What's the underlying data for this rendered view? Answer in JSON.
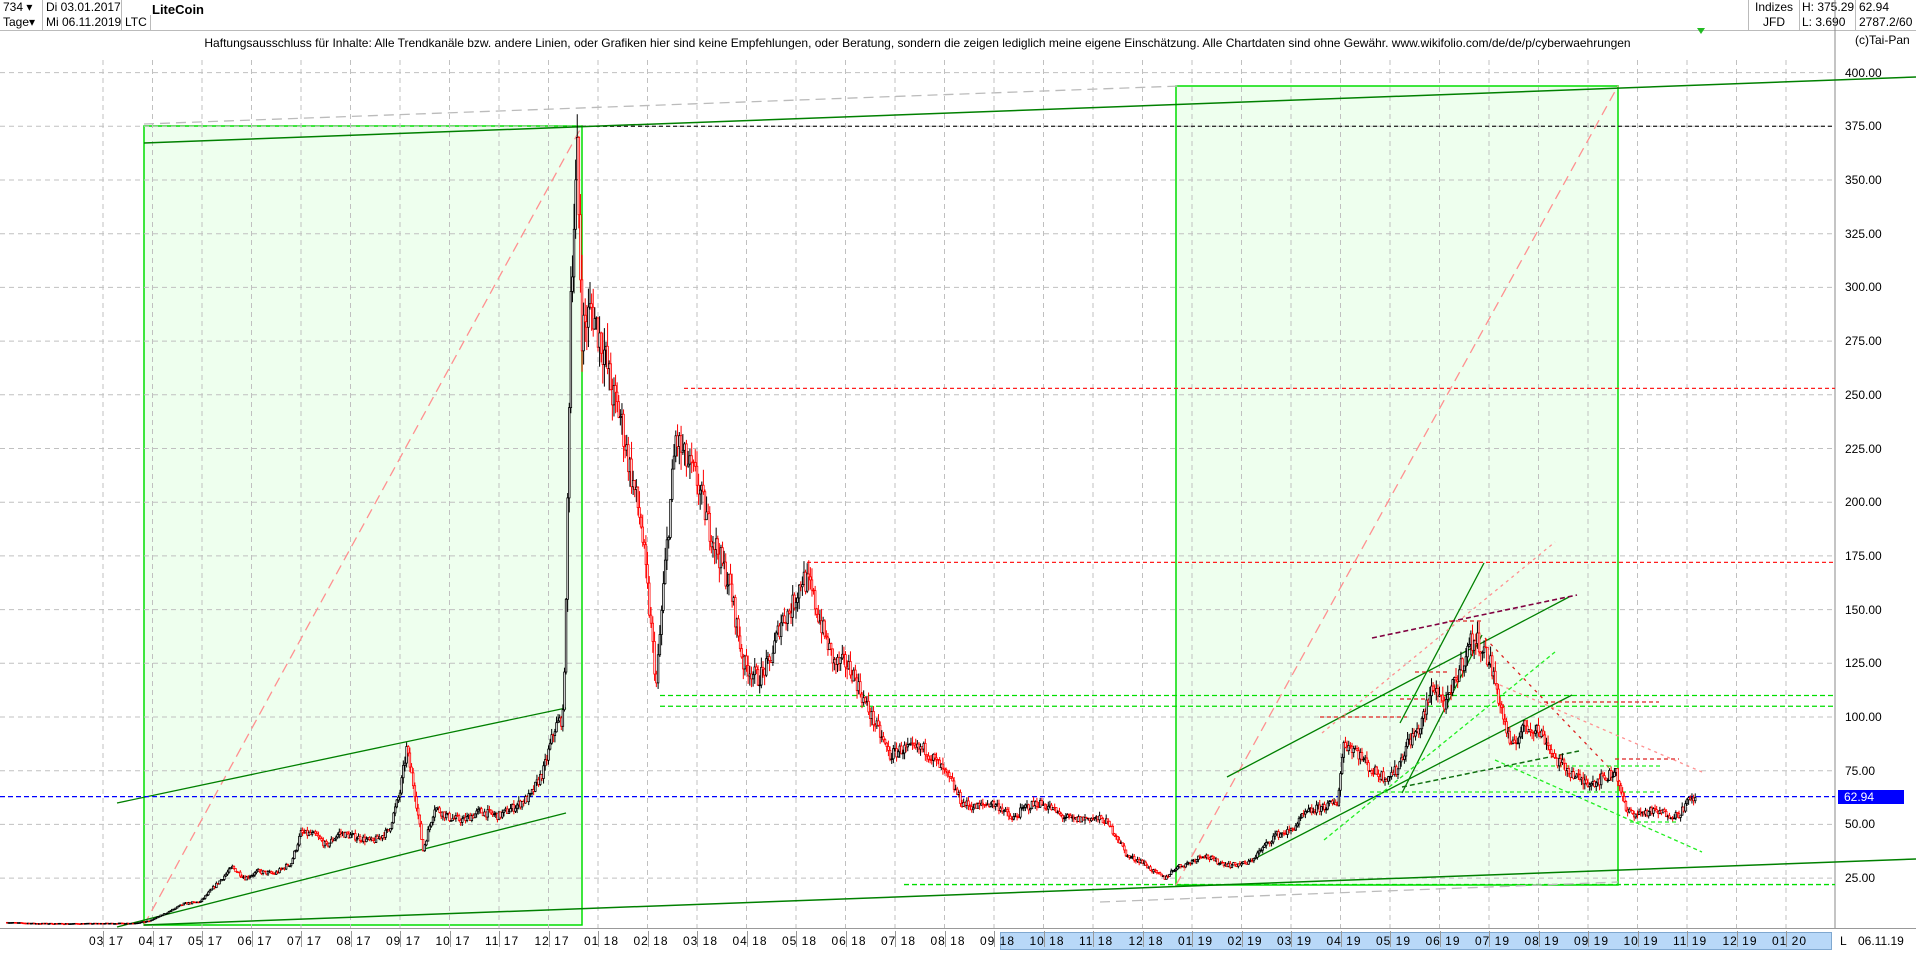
{
  "header": {
    "bar_count": "734",
    "period": "Tage",
    "start_date": "Di 03.01.2017",
    "end_date": "Mi 06.11.2019",
    "symbol": "LTC",
    "title": "LiteCoin",
    "exchange_group": "Indizes",
    "exchange": "JFD",
    "high": "H: 375.29",
    "low": "L: 3.690",
    "last": "62.94",
    "info": "2787.2/60"
  },
  "disclaimer": "Haftungsausschluss für Inhalte: Alle Trendkanäle bzw. andere Linien, oder Grafiken hier sind keine Empfehlungen, oder Beratung, sondern die zeigen lediglich meine eigene Einschätzung. Alle Chartdaten sind ohne Gewähr.  www.wikifolio.com/de/de/p/cyberwaehrungen",
  "copyright": "(c)Tai-Pan",
  "colors": {
    "up": "#000000",
    "down": "#ff0000",
    "box_fill": "#eeffee",
    "box_stroke": "#00dd00",
    "trend": "#008000",
    "last_price": "#0000ff"
  },
  "footer": {
    "scroll_marker": "L",
    "current_date": "06.11.19"
  },
  "chart_data": {
    "type": "candlestick",
    "title": "LiteCoin",
    "last_price": 62.94,
    "ylim": [
      0,
      410
    ],
    "y_ticks": [
      "25.00",
      "50.00",
      "75.00",
      "100.00",
      "125.00",
      "150.00",
      "175.00",
      "200.00",
      "225.00",
      "250.00",
      "275.00",
      "300.00",
      "325.00",
      "350.00",
      "375.00",
      "400.00"
    ],
    "x_ticks": [
      "03 17",
      "04 17",
      "05 17",
      "06 17",
      "07 17",
      "08 17",
      "09 17",
      "10 17",
      "11 17",
      "12 17",
      "01 18",
      "02 18",
      "03 18",
      "04 18",
      "05 18",
      "06 18",
      "07 18",
      "08 18",
      "09 18",
      "10 18",
      "11 18",
      "12 18",
      "01 19",
      "02 19",
      "03 19",
      "04 19",
      "05 19",
      "06 19",
      "07 19",
      "08 19",
      "09 19",
      "10 19",
      "11 19",
      "12 19",
      "01 20"
    ],
    "grid": true,
    "horizontal_levels": [
      375,
      253,
      172,
      110,
      105,
      22
    ],
    "series": [
      [
        "2017-01-03",
        4.4
      ],
      [
        "2017-01-20",
        3.9
      ],
      [
        "2017-02-10",
        3.8
      ],
      [
        "2017-03-01",
        3.9
      ],
      [
        "2017-03-20",
        4.0
      ],
      [
        "2017-03-30",
        5
      ],
      [
        "2017-04-10",
        9
      ],
      [
        "2017-04-20",
        13
      ],
      [
        "2017-04-30",
        14
      ],
      [
        "2017-05-10",
        22
      ],
      [
        "2017-05-20",
        30
      ],
      [
        "2017-05-28",
        25
      ],
      [
        "2017-06-05",
        28
      ],
      [
        "2017-06-15",
        27
      ],
      [
        "2017-06-25",
        32
      ],
      [
        "2017-07-01",
        46
      ],
      [
        "2017-07-10",
        45
      ],
      [
        "2017-07-17",
        40
      ],
      [
        "2017-07-25",
        46
      ],
      [
        "2017-08-05",
        44
      ],
      [
        "2017-08-15",
        42
      ],
      [
        "2017-08-25",
        47
      ],
      [
        "2017-09-01",
        65
      ],
      [
        "2017-09-05",
        85
      ],
      [
        "2017-09-10",
        65
      ],
      [
        "2017-09-15",
        38
      ],
      [
        "2017-09-22",
        58
      ],
      [
        "2017-10-01",
        53
      ],
      [
        "2017-10-10",
        52
      ],
      [
        "2017-10-20",
        56
      ],
      [
        "2017-11-01",
        54
      ],
      [
        "2017-11-10",
        58
      ],
      [
        "2017-11-20",
        63
      ],
      [
        "2017-11-28",
        75
      ],
      [
        "2017-12-05",
        95
      ],
      [
        "2017-12-10",
        100
      ],
      [
        "2017-12-12",
        150
      ],
      [
        "2017-12-15",
        300
      ],
      [
        "2017-12-19",
        360
      ],
      [
        "2017-12-22",
        280
      ],
      [
        "2017-12-28",
        290
      ],
      [
        "2018-01-05",
        270
      ],
      [
        "2018-01-10",
        250
      ],
      [
        "2018-01-15",
        240
      ],
      [
        "2018-01-20",
        220
      ],
      [
        "2018-01-28",
        190
      ],
      [
        "2018-02-02",
        150
      ],
      [
        "2018-02-06",
        115
      ],
      [
        "2018-02-10",
        160
      ],
      [
        "2018-02-17",
        230
      ],
      [
        "2018-02-22",
        220
      ],
      [
        "2018-03-01",
        210
      ],
      [
        "2018-03-08",
        190
      ],
      [
        "2018-03-15",
        175
      ],
      [
        "2018-03-22",
        160
      ],
      [
        "2018-03-30",
        125
      ],
      [
        "2018-04-08",
        118
      ],
      [
        "2018-04-15",
        125
      ],
      [
        "2018-04-22",
        145
      ],
      [
        "2018-04-28",
        150
      ],
      [
        "2018-05-05",
        165
      ],
      [
        "2018-05-10",
        160
      ],
      [
        "2018-05-18",
        140
      ],
      [
        "2018-05-25",
        125
      ],
      [
        "2018-06-01",
        125
      ],
      [
        "2018-06-06",
        120
      ],
      [
        "2018-06-12",
        108
      ],
      [
        "2018-06-20",
        95
      ],
      [
        "2018-06-28",
        82
      ],
      [
        "2018-07-05",
        85
      ],
      [
        "2018-07-12",
        85
      ],
      [
        "2018-07-20",
        85
      ],
      [
        "2018-07-28",
        78
      ],
      [
        "2018-08-05",
        70
      ],
      [
        "2018-08-12",
        60
      ],
      [
        "2018-08-20",
        58
      ],
      [
        "2018-08-30",
        60
      ],
      [
        "2018-09-05",
        58
      ],
      [
        "2018-09-12",
        52
      ],
      [
        "2018-09-20",
        58
      ],
      [
        "2018-09-28",
        60
      ],
      [
        "2018-10-05",
        58
      ],
      [
        "2018-10-12",
        54
      ],
      [
        "2018-10-20",
        52
      ],
      [
        "2018-10-30",
        53
      ],
      [
        "2018-11-08",
        52
      ],
      [
        "2018-11-15",
        45
      ],
      [
        "2018-11-22",
        35
      ],
      [
        "2018-11-30",
        33
      ],
      [
        "2018-12-08",
        28
      ],
      [
        "2018-12-15",
        25
      ],
      [
        "2018-12-22",
        30
      ],
      [
        "2018-12-30",
        32
      ],
      [
        "2019-01-08",
        36
      ],
      [
        "2019-01-15",
        33
      ],
      [
        "2019-01-25",
        31
      ],
      [
        "2019-02-05",
        32
      ],
      [
        "2019-02-12",
        38
      ],
      [
        "2019-02-20",
        45
      ],
      [
        "2019-03-01",
        47
      ],
      [
        "2019-03-10",
        55
      ],
      [
        "2019-03-20",
        58
      ],
      [
        "2019-03-30",
        60
      ],
      [
        "2019-04-03",
        88
      ],
      [
        "2019-04-10",
        85
      ],
      [
        "2019-04-20",
        75
      ],
      [
        "2019-04-28",
        72
      ],
      [
        "2019-05-05",
        75
      ],
      [
        "2019-05-12",
        88
      ],
      [
        "2019-05-20",
        95
      ],
      [
        "2019-05-28",
        115
      ],
      [
        "2019-06-05",
        105
      ],
      [
        "2019-06-12",
        120
      ],
      [
        "2019-06-20",
        135
      ],
      [
        "2019-06-25",
        135
      ],
      [
        "2019-07-02",
        125
      ],
      [
        "2019-07-10",
        100
      ],
      [
        "2019-07-15",
        85
      ],
      [
        "2019-07-22",
        95
      ],
      [
        "2019-07-30",
        95
      ],
      [
        "2019-08-05",
        90
      ],
      [
        "2019-08-12",
        80
      ],
      [
        "2019-08-20",
        75
      ],
      [
        "2019-08-28",
        70
      ],
      [
        "2019-09-05",
        70
      ],
      [
        "2019-09-12",
        72
      ],
      [
        "2019-09-18",
        75
      ],
      [
        "2019-09-24",
        56
      ],
      [
        "2019-10-01",
        55
      ],
      [
        "2019-10-10",
        56
      ],
      [
        "2019-10-20",
        55
      ],
      [
        "2019-10-26",
        54
      ],
      [
        "2019-11-01",
        60
      ],
      [
        "2019-11-06",
        62.94
      ]
    ]
  }
}
